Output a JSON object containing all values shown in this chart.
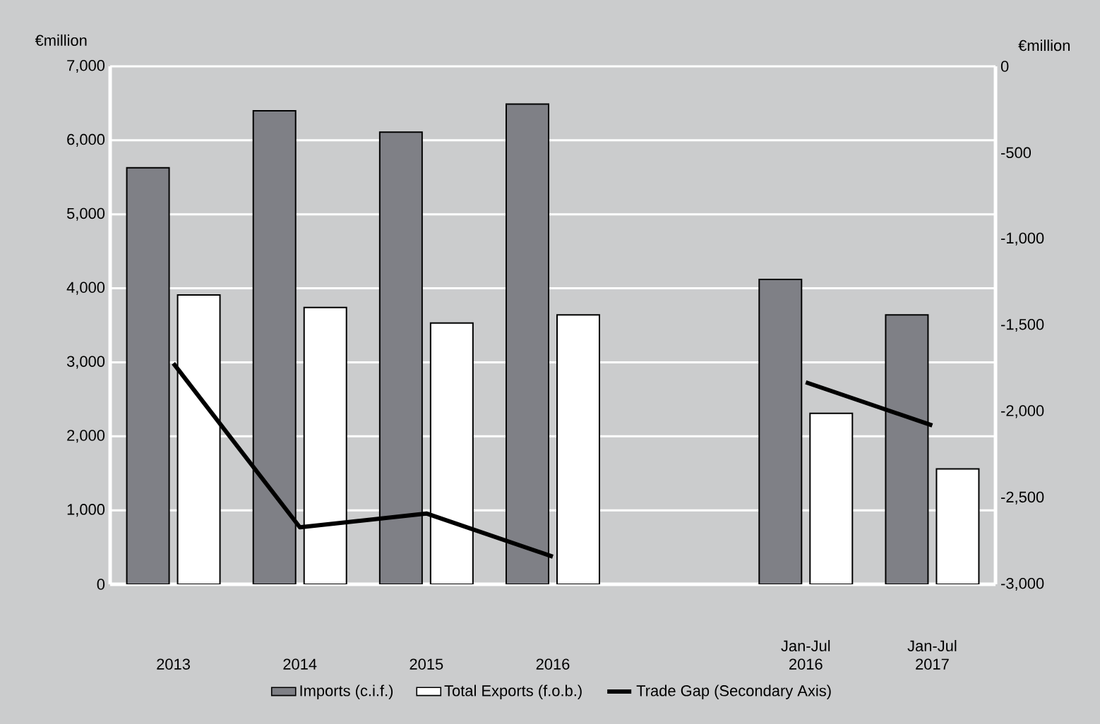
{
  "chart_data": {
    "type": "bar",
    "categories": [
      "2013",
      "2014",
      "2015",
      "2016",
      null,
      "Jan-Jul 2016",
      "Jan-Jul 2017"
    ],
    "series": [
      {
        "name": "Imports (c.i.f.)",
        "color": "#7f8086",
        "values": [
          5630,
          6400,
          6110,
          6490,
          null,
          4120,
          3640
        ]
      },
      {
        "name": "Total Exports (f.o.b.)",
        "color": "#ffffff",
        "values": [
          3910,
          3740,
          3530,
          3640,
          null,
          2310,
          1560
        ]
      },
      {
        "name": "Trade Gap (Secondary Axis)",
        "type": "line",
        "axis": "y2",
        "color": "#000000",
        "values": [
          -1720,
          -2670,
          -2590,
          -2840,
          null,
          -1830,
          -2080
        ]
      }
    ],
    "ylabel": "€million",
    "y2label": "€million",
    "ylim": [
      0,
      7000
    ],
    "yticks": [
      0,
      {
        "value": 1000,
        "label": "1,000"
      },
      {
        "value": 2000,
        "label": "2,000"
      },
      {
        "value": 3000,
        "label": "3,000"
      },
      {
        "value": 4000,
        "label": "4,000"
      },
      {
        "value": 5000,
        "label": "5,000"
      },
      {
        "value": 6000,
        "label": "6,000"
      },
      {
        "value": 7000,
        "label": "7,000"
      }
    ],
    "y2lim": [
      -3000,
      0
    ],
    "y2ticks": [
      {
        "value": -3000,
        "label": "-3,000"
      },
      {
        "value": -2500,
        "label": "-2,500"
      },
      {
        "value": -2000,
        "label": "-2,000"
      },
      {
        "value": -1500,
        "label": "-1,500"
      },
      {
        "value": -1000,
        "label": "-1,000"
      },
      {
        "value": -500,
        "label": "-500"
      },
      0
    ],
    "grid": "y",
    "legend": "bottom"
  }
}
